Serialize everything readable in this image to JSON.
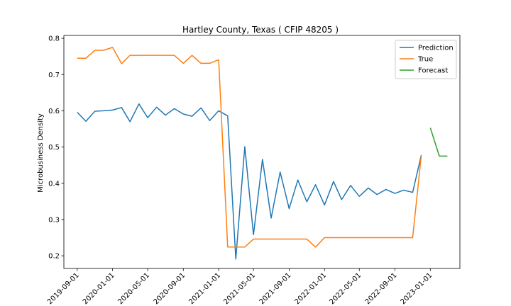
{
  "chart_data": {
    "type": "line",
    "title": "Hartley County, Texas ( CFIP 48205 )",
    "xlabel": "",
    "ylabel": "Microbusiness Density",
    "ylim": [
      0.165,
      0.808
    ],
    "xlim": [
      "2019-07-17",
      "2023-04-13"
    ],
    "x_ticks": [
      "2019-09-01",
      "2020-01-01",
      "2020-05-01",
      "2020-09-01",
      "2021-01-01",
      "2021-05-01",
      "2021-09-01",
      "2022-01-01",
      "2022-05-01",
      "2022-09-01",
      "2023-01-01"
    ],
    "y_ticks": [
      0.2,
      0.3,
      0.4,
      0.5,
      0.6,
      0.7,
      0.8
    ],
    "y_tick_labels": [
      "0.2",
      "0.3",
      "0.4",
      "0.5",
      "0.6",
      "0.7",
      "0.8"
    ],
    "grid": false,
    "legend": "top-right",
    "series": [
      {
        "name": "Prediction",
        "color": "#1f77b4",
        "x": [
          "2019-09-01",
          "2019-10-01",
          "2019-11-01",
          "2019-12-01",
          "2020-01-01",
          "2020-02-01",
          "2020-03-01",
          "2020-04-01",
          "2020-05-01",
          "2020-06-01",
          "2020-07-01",
          "2020-08-01",
          "2020-09-01",
          "2020-10-01",
          "2020-11-01",
          "2020-12-01",
          "2021-01-01",
          "2021-02-01",
          "2021-03-01",
          "2021-04-01",
          "2021-05-01",
          "2021-06-01",
          "2021-07-01",
          "2021-08-01",
          "2021-09-01",
          "2021-10-01",
          "2021-11-01",
          "2021-12-01",
          "2022-01-01",
          "2022-02-01",
          "2022-03-01",
          "2022-04-01",
          "2022-05-01",
          "2022-06-01",
          "2022-07-01",
          "2022-08-01",
          "2022-09-01",
          "2022-10-01",
          "2022-11-01",
          "2022-12-01"
        ],
        "values": [
          0.596,
          0.571,
          0.599,
          0.6,
          0.602,
          0.609,
          0.57,
          0.619,
          0.581,
          0.61,
          0.588,
          0.606,
          0.591,
          0.585,
          0.608,
          0.573,
          0.6,
          0.586,
          0.191,
          0.501,
          0.258,
          0.466,
          0.304,
          0.431,
          0.33,
          0.409,
          0.349,
          0.396,
          0.34,
          0.405,
          0.355,
          0.394,
          0.364,
          0.387,
          0.369,
          0.383,
          0.372,
          0.381,
          0.375,
          0.478
        ]
      },
      {
        "name": "True",
        "color": "#ff7f0e",
        "x": [
          "2019-09-01",
          "2019-10-01",
          "2019-11-01",
          "2019-12-01",
          "2020-01-01",
          "2020-02-01",
          "2020-03-01",
          "2020-04-01",
          "2020-05-01",
          "2020-06-01",
          "2020-07-01",
          "2020-08-01",
          "2020-09-01",
          "2020-10-01",
          "2020-11-01",
          "2020-12-01",
          "2021-01-01",
          "2021-02-01",
          "2021-03-01",
          "2021-04-01",
          "2021-05-01",
          "2021-06-01",
          "2021-07-01",
          "2021-08-01",
          "2021-09-01",
          "2021-10-01",
          "2021-11-01",
          "2021-12-01",
          "2022-01-01",
          "2022-02-01",
          "2022-03-01",
          "2022-04-01",
          "2022-05-01",
          "2022-06-01",
          "2022-07-01",
          "2022-08-01",
          "2022-09-01",
          "2022-10-01",
          "2022-11-01",
          "2022-12-01"
        ],
        "values": [
          0.745,
          0.745,
          0.767,
          0.767,
          0.775,
          0.73,
          0.753,
          0.753,
          0.753,
          0.753,
          0.753,
          0.753,
          0.731,
          0.753,
          0.731,
          0.731,
          0.741,
          0.224,
          0.224,
          0.224,
          0.246,
          0.246,
          0.246,
          0.246,
          0.246,
          0.246,
          0.246,
          0.224,
          0.25,
          0.25,
          0.25,
          0.25,
          0.25,
          0.25,
          0.25,
          0.25,
          0.25,
          0.25,
          0.25,
          0.478
        ]
      },
      {
        "name": "Forecast",
        "color": "#2ca02c",
        "x": [
          "2023-01-01",
          "2023-02-01",
          "2023-03-01"
        ],
        "values": [
          0.553,
          0.475,
          0.475
        ]
      }
    ]
  }
}
